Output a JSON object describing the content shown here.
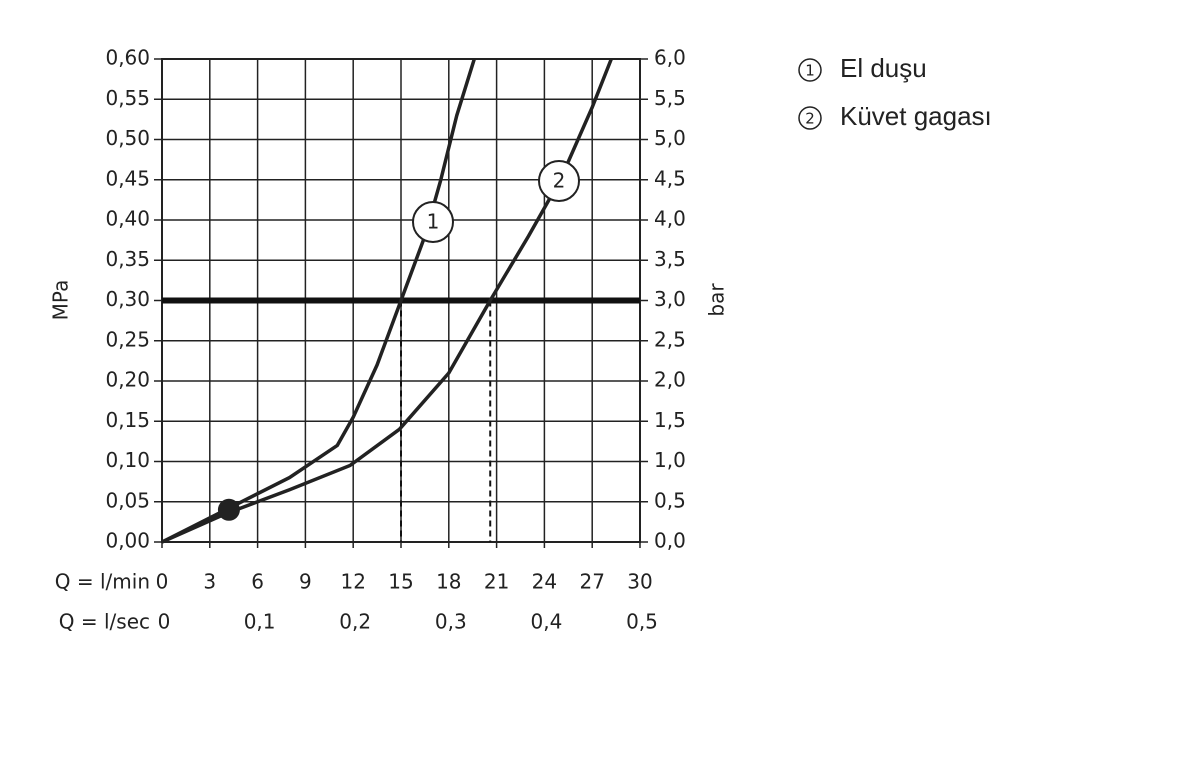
{
  "chart_data": {
    "type": "line",
    "xlabel": "Q = l/min",
    "x2label": "Q = l/sec",
    "ylabel": "MPa",
    "y2label": "bar",
    "xlim": [
      0,
      30
    ],
    "xticks": [
      0,
      3,
      6,
      9,
      12,
      15,
      18,
      21,
      24,
      27,
      30
    ],
    "x2lim": [
      0,
      0.5
    ],
    "x2ticks": [
      0,
      {
        "value": 0.1,
        "label": "0,1"
      },
      {
        "value": 0.2,
        "label": "0,2"
      },
      {
        "value": 0.3,
        "label": "0,3"
      },
      {
        "value": 0.4,
        "label": "0,4"
      },
      {
        "value": 0.5,
        "label": "0,5"
      }
    ],
    "ylim": [
      0,
      0.6
    ],
    "yticks": [
      {
        "value": 0,
        "label": "0,00"
      },
      {
        "value": 0.05,
        "label": "0,05"
      },
      {
        "value": 0.1,
        "label": "0,10"
      },
      {
        "value": 0.15,
        "label": "0,15"
      },
      {
        "value": 0.2,
        "label": "0,20"
      },
      {
        "value": 0.25,
        "label": "0,25"
      },
      {
        "value": 0.3,
        "label": "0,30"
      },
      {
        "value": 0.35,
        "label": "0,35"
      },
      {
        "value": 0.4,
        "label": "0,40"
      },
      {
        "value": 0.45,
        "label": "0,45"
      },
      {
        "value": 0.5,
        "label": "0,50"
      },
      {
        "value": 0.55,
        "label": "0,55"
      },
      {
        "value": 0.6,
        "label": "0,60"
      }
    ],
    "y2lim": [
      0,
      6
    ],
    "y2ticks": [
      {
        "value": 0,
        "label": "0,0"
      },
      {
        "value": 0.5,
        "label": "0,5"
      },
      {
        "value": 1,
        "label": "1,0"
      },
      {
        "value": 1.5,
        "label": "1,5"
      },
      {
        "value": 2,
        "label": "2,0"
      },
      {
        "value": 2.5,
        "label": "2,5"
      },
      {
        "value": 3,
        "label": "3,0"
      },
      {
        "value": 3.5,
        "label": "3,5"
      },
      {
        "value": 4,
        "label": "4,0"
      },
      {
        "value": 4.5,
        "label": "4,5"
      },
      {
        "value": 5,
        "label": "5,0"
      },
      {
        "value": 5.5,
        "label": "5,5"
      },
      {
        "value": 6,
        "label": "6,0"
      }
    ],
    "grid": true,
    "color": "#222222",
    "reference_line": 0.3,
    "drop_lines": [
      15,
      20.6
    ],
    "points": [
      {
        "x": 4.2,
        "y": 0.04
      }
    ],
    "series": [
      {
        "name": "El duşu",
        "label": "1",
        "x": [
          0,
          4,
          8,
          11,
          12,
          13.5,
          15,
          16.5,
          17.5,
          18.5,
          19.6
        ],
        "values": [
          0,
          0.04,
          0.08,
          0.12,
          0.155,
          0.22,
          0.3,
          0.38,
          0.45,
          0.53,
          0.6
        ]
      },
      {
        "name": "Küvet gagası",
        "label": "2",
        "x": [
          0,
          4,
          8,
          11.8,
          14.9,
          18,
          20.6,
          23,
          25,
          27,
          28.2
        ],
        "values": [
          0,
          0.035,
          0.065,
          0.095,
          0.14,
          0.21,
          0.3,
          0.38,
          0.45,
          0.54,
          0.6
        ]
      }
    ]
  }
}
